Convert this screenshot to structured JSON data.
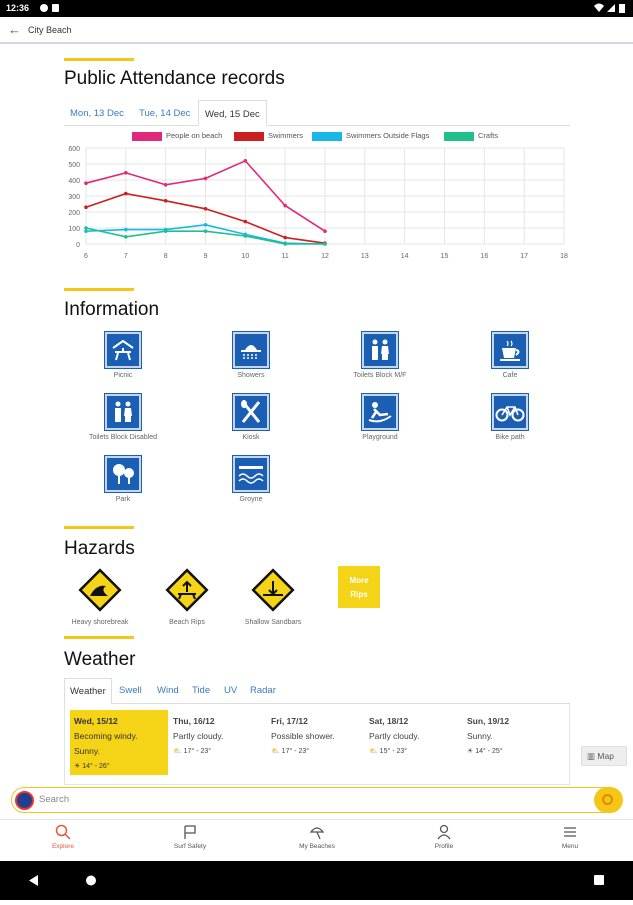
{
  "status": {
    "time": "12:36"
  },
  "appbar": {
    "title": "City Beach"
  },
  "attendance": {
    "heading": "Public Attendance records",
    "tabs": [
      "Mon, 13 Dec",
      "Tue, 14 Dec",
      "Wed, 15 Dec"
    ],
    "active_tab": 2
  },
  "chart_data": {
    "type": "line",
    "x": [
      6,
      7,
      8,
      9,
      10,
      11,
      12
    ],
    "xticks": [
      "6",
      "7",
      "8",
      "9",
      "10",
      "11",
      "12",
      "13",
      "14",
      "15",
      "16",
      "17",
      "18"
    ],
    "yticks": [
      "0",
      "100",
      "200",
      "300",
      "400",
      "500",
      "600"
    ],
    "xlim": [
      6,
      18
    ],
    "ylim": [
      0,
      600
    ],
    "grid": true,
    "legend_position": "top",
    "series": [
      {
        "name": "People on beach",
        "color": "#e0297a",
        "values": [
          380,
          445,
          370,
          410,
          520,
          240,
          80
        ]
      },
      {
        "name": "Swimmers",
        "color": "#cc2020",
        "values": [
          230,
          315,
          270,
          220,
          140,
          40,
          5
        ]
      },
      {
        "name": "Swimmers Outside Flags",
        "color": "#1ab8e6",
        "values": [
          80,
          90,
          90,
          120,
          60,
          5,
          0
        ]
      },
      {
        "name": "Crafts",
        "color": "#20c08a",
        "values": [
          100,
          45,
          80,
          80,
          50,
          0,
          0
        ]
      }
    ]
  },
  "information": {
    "heading": "Information",
    "items": [
      {
        "label": "Picnic",
        "icon": "picnic-icon"
      },
      {
        "label": "Showers",
        "icon": "shower-icon"
      },
      {
        "label": "Toilets Block M/F",
        "icon": "toilets-icon"
      },
      {
        "label": "Cafe",
        "icon": "cafe-icon"
      },
      {
        "label": "Toilets Block Disabled",
        "icon": "toilets-disabled-icon"
      },
      {
        "label": "Kiosk",
        "icon": "kiosk-icon"
      },
      {
        "label": "Playground",
        "icon": "playground-icon"
      },
      {
        "label": "Bike path",
        "icon": "bike-icon"
      },
      {
        "label": "Park",
        "icon": "park-icon"
      },
      {
        "label": "Groyne",
        "icon": "groyne-icon"
      }
    ]
  },
  "hazards": {
    "heading": "Hazards",
    "items": [
      {
        "label": "Heavy shorebreak",
        "icon": "shorebreak-warning-icon"
      },
      {
        "label": "Beach Rips",
        "icon": "rips-warning-icon"
      },
      {
        "label": "Shallow Sandbars",
        "icon": "sandbars-warning-icon"
      }
    ],
    "more_label_1": "More",
    "more_label_2": "Rips"
  },
  "weather": {
    "heading": "Weather",
    "tabs": [
      "Weather",
      "Swell",
      "Wind",
      "Tide",
      "UV",
      "Radar"
    ],
    "active_tab": 0,
    "days": [
      {
        "name": "Wed, 15/12",
        "desc1": "Becoming windy.",
        "desc2": "Sunny.",
        "temps": "14° - 26°"
      },
      {
        "name": "Thu, 16/12",
        "desc1": "Partly cloudy.",
        "desc2": "",
        "temps": "17° - 23°"
      },
      {
        "name": "Fri, 17/12",
        "desc1": "Possible shower.",
        "desc2": "",
        "temps": "17° - 23°"
      },
      {
        "name": "Sat, 18/12",
        "desc1": "Partly cloudy.",
        "desc2": "",
        "temps": "15° - 23°"
      },
      {
        "name": "Sun, 19/12",
        "desc1": "Sunny.",
        "desc2": "",
        "temps": "14° - 25°"
      }
    ],
    "map_label": "Map"
  },
  "search": {
    "placeholder": "Search"
  },
  "nav": {
    "items": [
      {
        "label": "Explore",
        "icon": "search-icon"
      },
      {
        "label": "Surf Safety",
        "icon": "flag-icon"
      },
      {
        "label": "My Beaches",
        "icon": "umbrella-icon"
      },
      {
        "label": "Profile",
        "icon": "person-icon"
      },
      {
        "label": "Menu",
        "icon": "menu-icon"
      }
    ],
    "active": 0
  },
  "colors": {
    "accent": "#f5c518",
    "info_blue": "#1a5fb4",
    "link": "#3b7bbf",
    "active_nav": "#e25a3a"
  }
}
